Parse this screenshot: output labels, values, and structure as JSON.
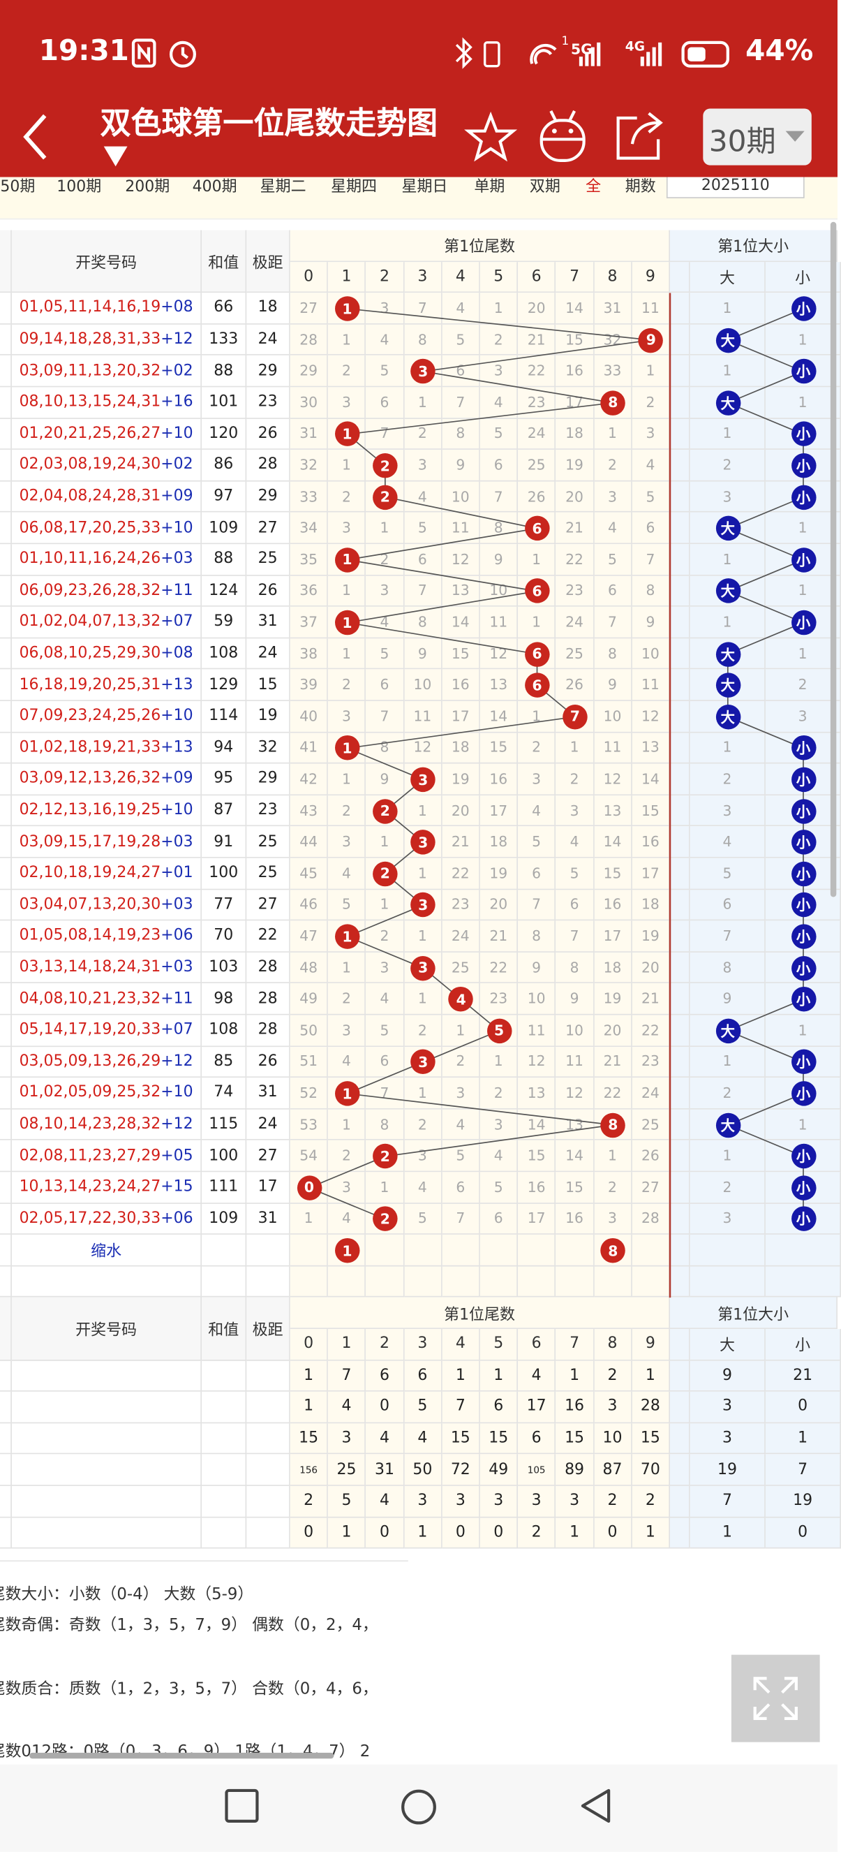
{
  "status_bar": {
    "time": "19:31",
    "signal_labels": [
      "1",
      "5G",
      "4G"
    ],
    "battery": "44%"
  },
  "header": {
    "title": "双色球第一位尾数走势图",
    "period_button": "30期"
  },
  "filters": [
    "50期",
    "100期",
    "200期",
    "400期",
    "星期二",
    "星期四",
    "星期日",
    "单期",
    "双期",
    "全",
    "期数"
  ],
  "filter_input": "2025110",
  "table": {
    "headers": {
      "code": "开奖号码",
      "sum": "和值",
      "span": "极距",
      "tail_group": "第1位尾数",
      "digits": [
        "0",
        "1",
        "2",
        "3",
        "4",
        "5",
        "6",
        "7",
        "8",
        "9"
      ],
      "size_group": "第1位大小",
      "sizes": [
        "大",
        "小"
      ]
    },
    "rows": [
      {
        "red": "01,05,11,14,16,19",
        "blue": "+08",
        "sum": 66,
        "span": 18,
        "tail": [
          27,
          "1",
          3,
          7,
          4,
          1,
          20,
          14,
          31,
          11
        ],
        "size": [
          1,
          "小"
        ]
      },
      {
        "red": "09,14,18,28,31,33",
        "blue": "+12",
        "sum": 133,
        "span": 24,
        "tail": [
          28,
          1,
          4,
          8,
          5,
          2,
          21,
          15,
          32,
          "9"
        ],
        "size": [
          "大",
          1
        ]
      },
      {
        "red": "03,09,11,13,20,32",
        "blue": "+02",
        "sum": 88,
        "span": 29,
        "tail": [
          29,
          2,
          5,
          "3",
          6,
          3,
          22,
          16,
          33,
          1
        ],
        "size": [
          1,
          "小"
        ]
      },
      {
        "red": "08,10,13,15,24,31",
        "blue": "+16",
        "sum": 101,
        "span": 23,
        "tail": [
          30,
          3,
          6,
          1,
          7,
          4,
          23,
          17,
          "8",
          2
        ],
        "size": [
          "大",
          1
        ]
      },
      {
        "red": "01,20,21,25,26,27",
        "blue": "+10",
        "sum": 120,
        "span": 26,
        "tail": [
          31,
          "1",
          7,
          2,
          8,
          5,
          24,
          18,
          1,
          3
        ],
        "size": [
          1,
          "小"
        ]
      },
      {
        "red": "02,03,08,19,24,30",
        "blue": "+02",
        "sum": 86,
        "span": 28,
        "tail": [
          32,
          1,
          "2",
          3,
          9,
          6,
          25,
          19,
          2,
          4
        ],
        "size": [
          2,
          "小"
        ]
      },
      {
        "red": "02,04,08,24,28,31",
        "blue": "+09",
        "sum": 97,
        "span": 29,
        "tail": [
          33,
          2,
          "2",
          4,
          10,
          7,
          26,
          20,
          3,
          5
        ],
        "size": [
          3,
          "小"
        ]
      },
      {
        "red": "06,08,17,20,25,33",
        "blue": "+10",
        "sum": 109,
        "span": 27,
        "tail": [
          34,
          3,
          1,
          5,
          11,
          8,
          "6",
          21,
          4,
          6
        ],
        "size": [
          "大",
          1
        ]
      },
      {
        "red": "01,10,11,16,24,26",
        "blue": "+03",
        "sum": 88,
        "span": 25,
        "tail": [
          35,
          "1",
          2,
          6,
          12,
          9,
          1,
          22,
          5,
          7
        ],
        "size": [
          1,
          "小"
        ]
      },
      {
        "red": "06,09,23,26,28,32",
        "blue": "+11",
        "sum": 124,
        "span": 26,
        "tail": [
          36,
          1,
          3,
          7,
          13,
          10,
          "6",
          23,
          6,
          8
        ],
        "size": [
          "大",
          1
        ]
      },
      {
        "red": "01,02,04,07,13,32",
        "blue": "+07",
        "sum": 59,
        "span": 31,
        "tail": [
          37,
          "1",
          4,
          8,
          14,
          11,
          1,
          24,
          7,
          9
        ],
        "size": [
          1,
          "小"
        ]
      },
      {
        "red": "06,08,10,25,29,30",
        "blue": "+08",
        "sum": 108,
        "span": 24,
        "tail": [
          38,
          1,
          5,
          9,
          15,
          12,
          "6",
          25,
          8,
          10
        ],
        "size": [
          "大",
          1
        ]
      },
      {
        "red": "16,18,19,20,25,31",
        "blue": "+13",
        "sum": 129,
        "span": 15,
        "tail": [
          39,
          2,
          6,
          10,
          16,
          13,
          "6",
          26,
          9,
          11
        ],
        "size": [
          "大",
          2
        ]
      },
      {
        "red": "07,09,23,24,25,26",
        "blue": "+10",
        "sum": 114,
        "span": 19,
        "tail": [
          40,
          3,
          7,
          11,
          17,
          14,
          1,
          "7",
          10,
          12
        ],
        "size": [
          "大",
          3
        ]
      },
      {
        "red": "01,02,18,19,21,33",
        "blue": "+13",
        "sum": 94,
        "span": 32,
        "tail": [
          41,
          "1",
          8,
          12,
          18,
          15,
          2,
          1,
          11,
          13
        ],
        "size": [
          1,
          "小"
        ]
      },
      {
        "red": "03,09,12,13,26,32",
        "blue": "+09",
        "sum": 95,
        "span": 29,
        "tail": [
          42,
          1,
          9,
          "3",
          19,
          16,
          3,
          2,
          12,
          14
        ],
        "size": [
          2,
          "小"
        ]
      },
      {
        "red": "02,12,13,16,19,25",
        "blue": "+10",
        "sum": 87,
        "span": 23,
        "tail": [
          43,
          2,
          "2",
          1,
          20,
          17,
          4,
          3,
          13,
          15
        ],
        "size": [
          3,
          "小"
        ]
      },
      {
        "red": "03,09,15,17,19,28",
        "blue": "+03",
        "sum": 91,
        "span": 25,
        "tail": [
          44,
          3,
          1,
          "3",
          21,
          18,
          5,
          4,
          14,
          16
        ],
        "size": [
          4,
          "小"
        ]
      },
      {
        "red": "02,10,18,19,24,27",
        "blue": "+01",
        "sum": 100,
        "span": 25,
        "tail": [
          45,
          4,
          "2",
          1,
          22,
          19,
          6,
          5,
          15,
          17
        ],
        "size": [
          5,
          "小"
        ]
      },
      {
        "red": "03,04,07,13,20,30",
        "blue": "+03",
        "sum": 77,
        "span": 27,
        "tail": [
          46,
          5,
          1,
          "3",
          23,
          20,
          7,
          6,
          16,
          18
        ],
        "size": [
          6,
          "小"
        ]
      },
      {
        "red": "01,05,08,14,19,23",
        "blue": "+06",
        "sum": 70,
        "span": 22,
        "tail": [
          47,
          "1",
          2,
          1,
          24,
          21,
          8,
          7,
          17,
          19
        ],
        "size": [
          7,
          "小"
        ]
      },
      {
        "red": "03,13,14,18,24,31",
        "blue": "+03",
        "sum": 103,
        "span": 28,
        "tail": [
          48,
          1,
          3,
          "3",
          25,
          22,
          9,
          8,
          18,
          20
        ],
        "size": [
          8,
          "小"
        ]
      },
      {
        "red": "04,08,10,21,23,32",
        "blue": "+11",
        "sum": 98,
        "span": 28,
        "tail": [
          49,
          2,
          4,
          1,
          "4",
          23,
          10,
          9,
          19,
          21
        ],
        "size": [
          9,
          "小"
        ]
      },
      {
        "red": "05,14,17,19,20,33",
        "blue": "+07",
        "sum": 108,
        "span": 28,
        "tail": [
          50,
          3,
          5,
          2,
          1,
          "5",
          11,
          10,
          20,
          22
        ],
        "size": [
          "大",
          1
        ]
      },
      {
        "red": "03,05,09,13,26,29",
        "blue": "+12",
        "sum": 85,
        "span": 26,
        "tail": [
          51,
          4,
          6,
          "3",
          2,
          1,
          12,
          11,
          21,
          23
        ],
        "size": [
          1,
          "小"
        ]
      },
      {
        "red": "01,02,05,09,25,32",
        "blue": "+10",
        "sum": 74,
        "span": 31,
        "tail": [
          52,
          "1",
          7,
          1,
          3,
          2,
          13,
          12,
          22,
          24
        ],
        "size": [
          2,
          "小"
        ]
      },
      {
        "red": "08,10,14,23,28,32",
        "blue": "+12",
        "sum": 115,
        "span": 24,
        "tail": [
          53,
          1,
          8,
          2,
          4,
          3,
          14,
          13,
          "8",
          25
        ],
        "size": [
          "大",
          1
        ]
      },
      {
        "red": "02,08,11,23,27,29",
        "blue": "+05",
        "sum": 100,
        "span": 27,
        "tail": [
          54,
          2,
          "2",
          3,
          5,
          4,
          15,
          14,
          1,
          26
        ],
        "size": [
          1,
          "小"
        ]
      },
      {
        "red": "10,13,14,23,24,27",
        "blue": "+15",
        "sum": 111,
        "span": 17,
        "tail": [
          "0",
          3,
          1,
          4,
          6,
          5,
          16,
          15,
          2,
          27
        ],
        "size": [
          2,
          "小"
        ]
      },
      {
        "red": "02,05,17,22,30,33",
        "blue": "+06",
        "sum": 109,
        "span": 31,
        "tail": [
          1,
          4,
          "2",
          5,
          7,
          6,
          17,
          16,
          3,
          28
        ],
        "size": [
          3,
          "小"
        ]
      }
    ],
    "shrink": {
      "label": "缩水",
      "tail": [
        null,
        "1",
        null,
        null,
        null,
        null,
        null,
        null,
        "8",
        null
      ]
    }
  },
  "stats": {
    "headers": {
      "code": "开奖号码",
      "sum": "和值",
      "span": "极距",
      "tail_group": "第1位尾数",
      "digits": [
        "0",
        "1",
        "2",
        "3",
        "4",
        "5",
        "6",
        "7",
        "8",
        "9"
      ],
      "size_group": "第1位大小",
      "sizes": [
        "大",
        "小"
      ]
    },
    "rows": [
      {
        "tail": [
          1,
          7,
          6,
          6,
          1,
          1,
          4,
          1,
          2,
          1
        ],
        "size": [
          9,
          21
        ]
      },
      {
        "tail": [
          1,
          4,
          0,
          5,
          7,
          6,
          17,
          16,
          3,
          28
        ],
        "size": [
          3,
          0
        ]
      },
      {
        "tail": [
          15,
          3,
          4,
          4,
          15,
          15,
          6,
          15,
          10,
          15
        ],
        "size": [
          3,
          1
        ]
      },
      {
        "tail": [
          156,
          25,
          31,
          50,
          72,
          49,
          105,
          89,
          87,
          70
        ],
        "size": [
          19,
          7
        ]
      },
      {
        "tail": [
          2,
          5,
          4,
          3,
          3,
          3,
          3,
          3,
          2,
          2
        ],
        "size": [
          7,
          19
        ]
      },
      {
        "tail": [
          0,
          1,
          0,
          1,
          0,
          0,
          2,
          1,
          0,
          1
        ],
        "size": [
          1,
          0
        ]
      }
    ]
  },
  "notes": [
    "尾数大小：小数（0-4）  大数（5-9）",
    "尾数奇偶：奇数（1，3，5，7，9）  偶数（0，2，4，",
    "尾数质合：质数（1，2，3，5，7）  合数（0，4，6，",
    "尾数012路：0路（0，3，6，9）  1路（1，4，7）  2"
  ]
}
